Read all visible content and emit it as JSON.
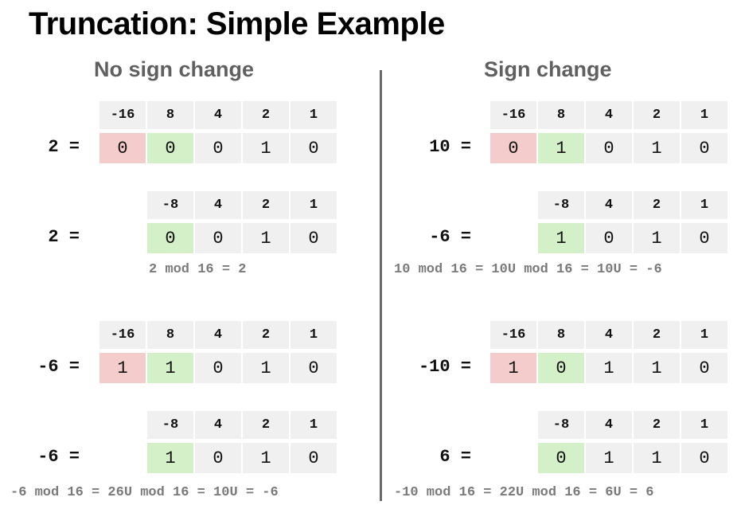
{
  "title": "Truncation: Simple Example",
  "left_heading": "No sign change",
  "right_heading": "Sign change",
  "colors": {
    "sign_bit_cell": "#f4cccc",
    "kept_msb_cell": "#d4f0c8",
    "plain_cell": "#f0f0f0"
  },
  "tables": {
    "l1": {
      "label": "2 =",
      "weights": [
        "-16",
        "8",
        "4",
        "2",
        "1"
      ],
      "bits": [
        "0",
        "0",
        "0",
        "1",
        "0"
      ]
    },
    "l2": {
      "label": "2 =",
      "weights": [
        "-8",
        "4",
        "2",
        "1"
      ],
      "bits": [
        "0",
        "0",
        "1",
        "0"
      ]
    },
    "l3": {
      "label": "-6 =",
      "weights": [
        "-16",
        "8",
        "4",
        "2",
        "1"
      ],
      "bits": [
        "1",
        "1",
        "0",
        "1",
        "0"
      ]
    },
    "l4": {
      "label": "-6 =",
      "weights": [
        "-8",
        "4",
        "2",
        "1"
      ],
      "bits": [
        "1",
        "0",
        "1",
        "0"
      ]
    },
    "r1": {
      "label": "10 =",
      "weights": [
        "-16",
        "8",
        "4",
        "2",
        "1"
      ],
      "bits": [
        "0",
        "1",
        "0",
        "1",
        "0"
      ]
    },
    "r2": {
      "label": "-6 =",
      "weights": [
        "-8",
        "4",
        "2",
        "1"
      ],
      "bits": [
        "1",
        "0",
        "1",
        "0"
      ]
    },
    "r3": {
      "label": "-10 =",
      "weights": [
        "-16",
        "8",
        "4",
        "2",
        "1"
      ],
      "bits": [
        "1",
        "0",
        "1",
        "1",
        "0"
      ]
    },
    "r4": {
      "label": "6 =",
      "weights": [
        "-8",
        "4",
        "2",
        "1"
      ],
      "bits": [
        "0",
        "1",
        "1",
        "0"
      ]
    }
  },
  "notes": {
    "l_top": "2 mod 16 = 2",
    "r_top": "10 mod 16 = 10U mod 16 = 10U = -6",
    "l_bottom": "-6 mod 16 = 26U mod 16 = 10U = -6",
    "r_bottom": "-10 mod 16 = 22U mod 16 = 6U = 6"
  }
}
